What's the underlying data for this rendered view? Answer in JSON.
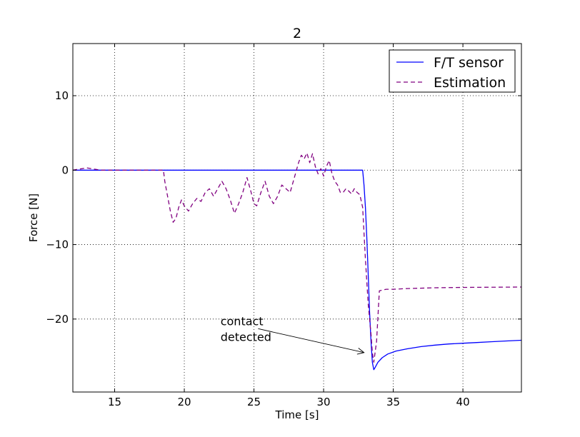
{
  "chart_data": {
    "type": "line",
    "title": "2",
    "xlabel": "Time [s]",
    "ylabel": "Force [N]",
    "xlim": [
      12,
      44.2
    ],
    "ylim": [
      -29.8,
      17
    ],
    "xticks": [
      15,
      20,
      25,
      30,
      35,
      40
    ],
    "yticks": [
      10,
      0,
      -10,
      -20
    ],
    "ytick_labels": [
      "10",
      "0",
      "−10",
      "−20"
    ],
    "grid": true,
    "legend_position": "top-right",
    "series": [
      {
        "name": "F/T sensor",
        "color": "#0000ff",
        "style": "solid",
        "x": [
          12,
          18,
          25,
          30,
          32.8,
          32.9,
          33.0,
          33.1,
          33.2,
          33.3,
          33.4,
          33.5,
          33.6,
          33.7,
          33.9,
          34.2,
          34.6,
          35.2,
          36,
          37,
          38,
          39,
          40,
          41,
          42,
          43,
          44.2
        ],
        "y": [
          0,
          0,
          0,
          0,
          0,
          -2,
          -5,
          -9,
          -14,
          -19,
          -23,
          -25.8,
          -26.8,
          -26.5,
          -25.8,
          -25.2,
          -24.7,
          -24.3,
          -24.0,
          -23.7,
          -23.5,
          -23.35,
          -23.25,
          -23.15,
          -23.05,
          -22.95,
          -22.85
        ]
      },
      {
        "name": "Estimation",
        "color": "#800080",
        "style": "dashed",
        "x": [
          12,
          13,
          14,
          16,
          18,
          18.5,
          18.6,
          18.8,
          19.0,
          19.2,
          19.4,
          19.6,
          19.8,
          20.0,
          20.3,
          20.6,
          20.9,
          21.2,
          21.5,
          21.8,
          22.1,
          22.4,
          22.7,
          23.0,
          23.3,
          23.6,
          23.9,
          24.2,
          24.5,
          24.8,
          25.0,
          25.2,
          25.5,
          25.8,
          26.1,
          26.4,
          26.7,
          27.0,
          27.3,
          27.6,
          27.9,
          28.2,
          28.4,
          28.6,
          28.8,
          29.0,
          29.2,
          29.4,
          29.6,
          29.8,
          30.0,
          30.2,
          30.4,
          30.6,
          30.8,
          31.0,
          31.2,
          31.4,
          31.6,
          31.8,
          32.0,
          32.2,
          32.4,
          32.6,
          32.8,
          33.0,
          33.2,
          33.4,
          33.5,
          33.6,
          33.8,
          34.0,
          34.5,
          35,
          36,
          38,
          40,
          44.2
        ],
        "y": [
          0,
          0.3,
          0,
          0,
          0,
          0,
          -1.5,
          -3.5,
          -5.5,
          -7.0,
          -6.5,
          -5.0,
          -4.0,
          -4.8,
          -5.5,
          -4.5,
          -3.8,
          -4.2,
          -3.0,
          -2.5,
          -3.5,
          -2.5,
          -1.5,
          -2.5,
          -4.0,
          -5.8,
          -4.5,
          -3.0,
          -1.0,
          -3.0,
          -4.5,
          -4.8,
          -3.0,
          -1.5,
          -3.5,
          -4.5,
          -3.5,
          -2.0,
          -2.5,
          -3.0,
          -1.0,
          1.0,
          2.0,
          1.5,
          2.3,
          1.0,
          2.2,
          0.5,
          -0.5,
          0.2,
          -0.8,
          0.5,
          1.3,
          -0.5,
          -1.5,
          -2.0,
          -3.0,
          -3.0,
          -2.5,
          -2.8,
          -3.2,
          -2.5,
          -3.0,
          -3.3,
          -5,
          -12,
          -18,
          -22,
          -24.5,
          -25.8,
          -23,
          -16.2,
          -16.0,
          -16.0,
          -15.9,
          -15.8,
          -15.75,
          -15.7
        ]
      }
    ],
    "annotation": {
      "text_line1": "contact",
      "text_line2": "detected",
      "text_x": 22.6,
      "text_y": -21.2,
      "arrow_from_x": 25.3,
      "arrow_from_y": -21.3,
      "arrow_to_x": 32.9,
      "arrow_to_y": -24.5
    }
  }
}
